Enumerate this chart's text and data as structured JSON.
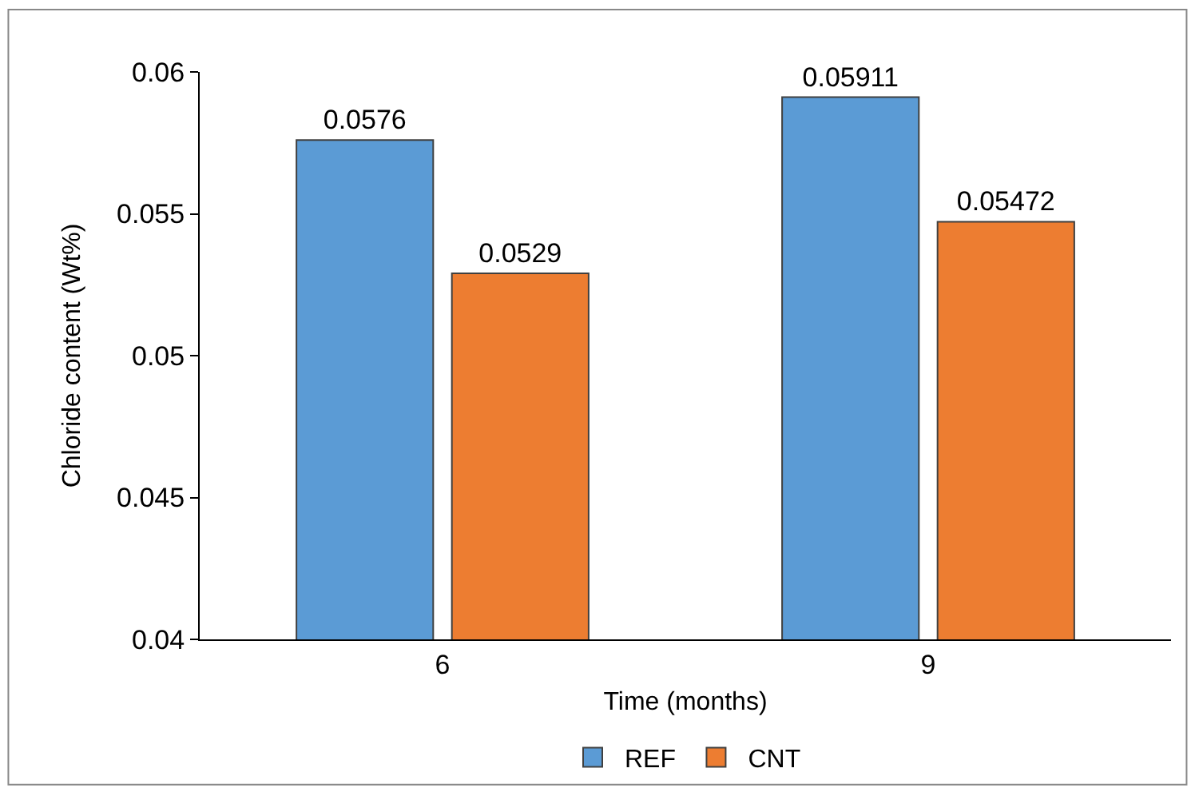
{
  "chart_data": {
    "type": "bar",
    "xlabel": "Time (months)",
    "ylabel": "Chloride content (Wt%)",
    "categories": [
      "6",
      "9"
    ],
    "series": [
      {
        "name": "REF",
        "color": "#5b9bd5",
        "values": [
          0.0576,
          0.05911
        ]
      },
      {
        "name": "CNT",
        "color": "#ed7d31",
        "values": [
          0.0529,
          0.05472
        ]
      }
    ],
    "ylim": [
      0.04,
      0.06
    ],
    "yticks": [
      0.04,
      0.045,
      0.05,
      0.055,
      0.06
    ],
    "data_labels": true,
    "legend": "bottom"
  }
}
